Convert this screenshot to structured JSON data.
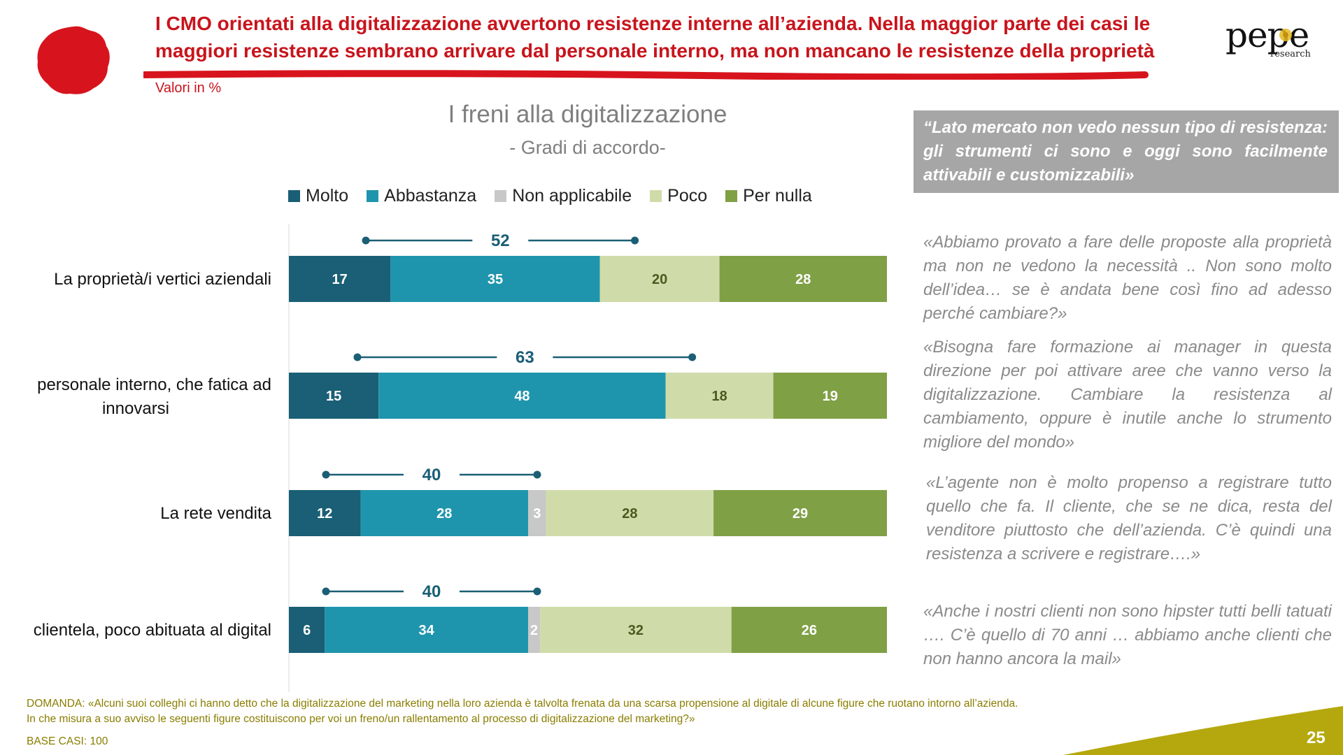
{
  "header": {
    "headline": "I CMO orientati alla digitalizzazione avvertono resistenze interne all’azienda. Nella maggior parte dei casi le maggiori resistenze sembrano arrivare dal personale interno, ma non mancano le resistenze della proprietà",
    "values_note": "Valori in %",
    "logo_name": "pepe",
    "logo_sub": "research"
  },
  "colors": {
    "headline": "#c8141c",
    "molto": "#1a5f75",
    "abbastanza": "#1f95ad",
    "non_applicabile": "#c8c8c8",
    "poco": "#cfdcaa",
    "per_nulla": "#80a046",
    "footer_text": "#8a7d00",
    "corner": "#b5a80e"
  },
  "chart_data": {
    "type": "bar",
    "orientation": "horizontal-stacked-100",
    "title": "I freni alla digitalizzazione",
    "subtitle": "- Gradi di accordo-",
    "categories": [
      "La proprietà/i vertici aziendali",
      "personale interno, che fatica ad innovarsi",
      "La rete vendita",
      "clientela, poco abituata al digital"
    ],
    "series": [
      {
        "name": "Molto",
        "values": [
          17,
          15,
          12,
          6
        ]
      },
      {
        "name": "Abbastanza",
        "values": [
          35,
          48,
          28,
          34
        ]
      },
      {
        "name": "Non applicabile",
        "values": [
          0,
          0,
          3,
          2
        ]
      },
      {
        "name": "Poco",
        "values": [
          20,
          18,
          28,
          32
        ]
      },
      {
        "name": "Per nulla",
        "values": [
          28,
          19,
          29,
          26
        ]
      }
    ],
    "totals_molto_abbastanza": [
      52,
      63,
      40,
      40
    ],
    "xlim": [
      0,
      100
    ],
    "legend_position": "top",
    "grid": false
  },
  "quotes": {
    "highlight": "“Lato mercato non vedo nessun tipo di resistenza: gli strumenti ci sono e oggi sono facilmente attivabili e customizzabili»",
    "items": [
      "«Abbiamo provato a fare delle proposte alla proprietà ma non ne vedono la necessità .. Non sono molto dell’idea… se è andata bene così fino ad adesso perché cambiare?»",
      "«Bisogna  fare formazione ai manager in questa direzione per poi attivare aree che vanno verso la digitalizzazione. Cambiare la resistenza al cambiamento, oppure è inutile anche lo strumento migliore del mondo»",
      "«L’agente  non è molto propenso a registrare tutto quello che fa. Il cliente, che se ne dica, resta del venditore piuttosto che dell’azienda. C’è quindi una resistenza a scrivere e registrare….»",
      "«Anche i nostri clienti non sono hipster tutti belli tatuati …. C’è quello di 70 anni … abbiamo anche clienti che non hanno ancora la mail»"
    ]
  },
  "footer": {
    "question": "DOMANDA: «Alcuni suoi colleghi ci hanno detto che la digitalizzazione del marketing nella loro azienda è talvolta frenata da una scarsa propensione al digitale di alcune figure che ruotano intorno all’azienda. In che misura a suo avviso le seguenti figure costituiscono per voi un freno/un rallentamento al processo di digitalizzazione del marketing?»",
    "base": "BASE CASI: 100",
    "page_number": "25"
  }
}
